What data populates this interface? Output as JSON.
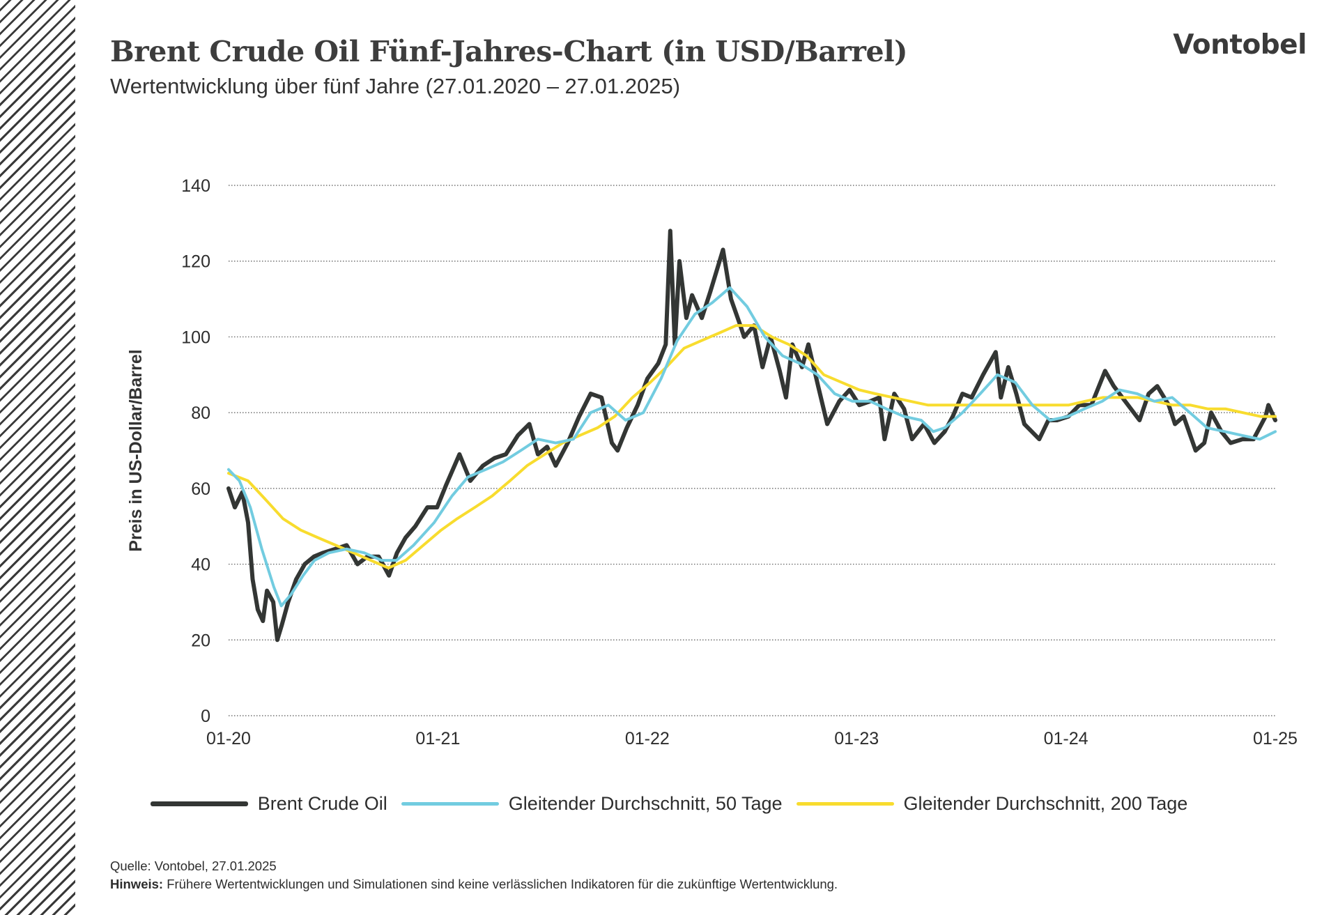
{
  "header": {
    "title": "Brent Crude Oil Fünf-Jahres-Chart (in USD/Barrel)",
    "subtitle": "Wertentwicklung über fünf Jahre (27.01.2020 – 27.01.2025)",
    "logo": "Vontobel"
  },
  "footer": {
    "source_label": "Quelle:",
    "source_text": "Vontobel,  27.01.2025",
    "note_label": "Hinweis:",
    "note_text": "Frühere Wertentwicklungen und Simulationen sind keine verlässlichen Indikatoren für die zukünftige Wertentwicklung."
  },
  "colors": {
    "brent": "#333634",
    "ma50": "#72cce0",
    "ma200": "#f8dc2e",
    "grid": "#555555",
    "hatch": "#3a3a3a"
  },
  "chart_data": {
    "type": "line",
    "title": "Brent Crude Oil Fünf-Jahres-Chart (in USD/Barrel)",
    "ylabel": "Preis in US-Dollar/Barrel",
    "xlabel": "",
    "ylim": [
      0,
      140
    ],
    "yticks": [
      0,
      20,
      40,
      60,
      80,
      100,
      120,
      140
    ],
    "xticks": [
      "01-20",
      "01-21",
      "01-22",
      "01-23",
      "01-24",
      "01-25"
    ],
    "xrange": [
      "2020-01-27",
      "2025-01-27"
    ],
    "grid": "horizontal dotted",
    "legend_position": "bottom",
    "series": [
      {
        "name": "Brent Crude Oil",
        "color": "#333634",
        "points": [
          [
            "2020-01-27",
            60
          ],
          [
            "2020-02-07",
            55
          ],
          [
            "2020-02-20",
            59
          ],
          [
            "2020-03-01",
            51
          ],
          [
            "2020-03-09",
            36
          ],
          [
            "2020-03-18",
            28
          ],
          [
            "2020-03-27",
            25
          ],
          [
            "2020-04-03",
            33
          ],
          [
            "2020-04-14",
            30
          ],
          [
            "2020-04-21",
            20
          ],
          [
            "2020-04-29",
            24
          ],
          [
            "2020-05-10",
            30
          ],
          [
            "2020-05-24",
            36
          ],
          [
            "2020-06-08",
            40
          ],
          [
            "2020-06-24",
            42
          ],
          [
            "2020-07-10",
            43
          ],
          [
            "2020-07-31",
            44
          ],
          [
            "2020-08-20",
            45
          ],
          [
            "2020-09-08",
            40
          ],
          [
            "2020-09-25",
            42
          ],
          [
            "2020-10-15",
            42
          ],
          [
            "2020-11-02",
            37
          ],
          [
            "2020-11-16",
            43
          ],
          [
            "2020-12-01",
            47
          ],
          [
            "2020-12-18",
            50
          ],
          [
            "2021-01-08",
            55
          ],
          [
            "2021-01-25",
            55
          ],
          [
            "2021-02-10",
            61
          ],
          [
            "2021-03-05",
            69
          ],
          [
            "2021-03-24",
            62
          ],
          [
            "2021-04-15",
            66
          ],
          [
            "2021-05-05",
            68
          ],
          [
            "2021-05-25",
            69
          ],
          [
            "2021-06-15",
            74
          ],
          [
            "2021-07-05",
            77
          ],
          [
            "2021-07-20",
            69
          ],
          [
            "2021-08-05",
            71
          ],
          [
            "2021-08-20",
            66
          ],
          [
            "2021-09-10",
            72
          ],
          [
            "2021-09-30",
            79
          ],
          [
            "2021-10-20",
            85
          ],
          [
            "2021-11-08",
            84
          ],
          [
            "2021-11-26",
            72
          ],
          [
            "2021-12-06",
            70
          ],
          [
            "2021-12-22",
            76
          ],
          [
            "2022-01-10",
            82
          ],
          [
            "2022-01-27",
            89
          ],
          [
            "2022-02-15",
            93
          ],
          [
            "2022-02-28",
            98
          ],
          [
            "2022-03-08",
            128
          ],
          [
            "2022-03-16",
            98
          ],
          [
            "2022-03-24",
            120
          ],
          [
            "2022-04-05",
            105
          ],
          [
            "2022-04-15",
            111
          ],
          [
            "2022-05-02",
            105
          ],
          [
            "2022-05-17",
            112
          ],
          [
            "2022-06-08",
            123
          ],
          [
            "2022-06-22",
            110
          ],
          [
            "2022-07-06",
            104
          ],
          [
            "2022-07-15",
            100
          ],
          [
            "2022-08-01",
            103
          ],
          [
            "2022-08-16",
            92
          ],
          [
            "2022-08-30",
            100
          ],
          [
            "2022-09-15",
            91
          ],
          [
            "2022-09-26",
            84
          ],
          [
            "2022-10-07",
            98
          ],
          [
            "2022-10-24",
            92
          ],
          [
            "2022-11-04",
            98
          ],
          [
            "2022-11-21",
            87
          ],
          [
            "2022-12-07",
            77
          ],
          [
            "2022-12-28",
            83
          ],
          [
            "2023-01-15",
            86
          ],
          [
            "2023-02-01",
            82
          ],
          [
            "2023-02-20",
            83
          ],
          [
            "2023-03-08",
            84
          ],
          [
            "2023-03-17",
            73
          ],
          [
            "2023-04-03",
            85
          ],
          [
            "2023-04-20",
            81
          ],
          [
            "2023-05-04",
            73
          ],
          [
            "2023-05-25",
            77
          ],
          [
            "2023-06-12",
            72
          ],
          [
            "2023-06-30",
            75
          ],
          [
            "2023-07-14",
            79
          ],
          [
            "2023-07-31",
            85
          ],
          [
            "2023-08-16",
            84
          ],
          [
            "2023-09-05",
            90
          ],
          [
            "2023-09-27",
            96
          ],
          [
            "2023-10-06",
            84
          ],
          [
            "2023-10-19",
            92
          ],
          [
            "2023-11-02",
            85
          ],
          [
            "2023-11-16",
            77
          ],
          [
            "2023-12-12",
            73
          ],
          [
            "2023-12-28",
            78
          ],
          [
            "2024-01-12",
            78
          ],
          [
            "2024-02-01",
            79
          ],
          [
            "2024-02-20",
            82
          ],
          [
            "2024-03-12",
            82
          ],
          [
            "2024-04-05",
            91
          ],
          [
            "2024-04-20",
            87
          ],
          [
            "2024-05-10",
            83
          ],
          [
            "2024-06-04",
            78
          ],
          [
            "2024-06-20",
            85
          ],
          [
            "2024-07-05",
            87
          ],
          [
            "2024-07-25",
            82
          ],
          [
            "2024-08-05",
            77
          ],
          [
            "2024-08-20",
            79
          ],
          [
            "2024-09-10",
            70
          ],
          [
            "2024-09-25",
            72
          ],
          [
            "2024-10-07",
            80
          ],
          [
            "2024-10-25",
            75
          ],
          [
            "2024-11-10",
            72
          ],
          [
            "2024-12-01",
            73
          ],
          [
            "2024-12-20",
            73
          ],
          [
            "2025-01-10",
            79
          ],
          [
            "2025-01-15",
            82
          ],
          [
            "2025-01-27",
            78
          ]
        ]
      },
      {
        "name": "Gleitender Durchschnitt, 50 Tage",
        "color": "#72cce0",
        "points": [
          [
            "2020-01-27",
            65
          ],
          [
            "2020-02-15",
            62
          ],
          [
            "2020-03-05",
            55
          ],
          [
            "2020-03-25",
            44
          ],
          [
            "2020-04-15",
            34
          ],
          [
            "2020-04-28",
            29
          ],
          [
            "2020-05-15",
            32
          ],
          [
            "2020-06-05",
            37
          ],
          [
            "2020-06-25",
            41
          ],
          [
            "2020-07-20",
            43
          ],
          [
            "2020-08-20",
            44
          ],
          [
            "2020-09-20",
            43
          ],
          [
            "2020-10-20",
            41
          ],
          [
            "2020-11-15",
            41
          ],
          [
            "2020-12-15",
            45
          ],
          [
            "2021-01-20",
            51
          ],
          [
            "2021-02-20",
            58
          ],
          [
            "2021-03-20",
            63
          ],
          [
            "2021-04-20",
            65
          ],
          [
            "2021-05-20",
            67
          ],
          [
            "2021-06-20",
            70
          ],
          [
            "2021-07-20",
            73
          ],
          [
            "2021-08-20",
            72
          ],
          [
            "2021-09-20",
            73
          ],
          [
            "2021-10-20",
            80
          ],
          [
            "2021-11-20",
            82
          ],
          [
            "2021-12-20",
            78
          ],
          [
            "2022-01-20",
            80
          ],
          [
            "2022-02-20",
            89
          ],
          [
            "2022-03-20",
            99
          ],
          [
            "2022-04-20",
            106
          ],
          [
            "2022-05-20",
            109
          ],
          [
            "2022-06-20",
            113
          ],
          [
            "2022-07-20",
            108
          ],
          [
            "2022-08-20",
            100
          ],
          [
            "2022-09-20",
            95
          ],
          [
            "2022-10-20",
            93
          ],
          [
            "2022-11-20",
            90
          ],
          [
            "2022-12-20",
            85
          ],
          [
            "2023-01-20",
            83
          ],
          [
            "2023-02-20",
            83
          ],
          [
            "2023-03-20",
            81
          ],
          [
            "2023-04-20",
            79
          ],
          [
            "2023-05-20",
            78
          ],
          [
            "2023-06-10",
            75
          ],
          [
            "2023-06-30",
            76
          ],
          [
            "2023-07-31",
            80
          ],
          [
            "2023-08-31",
            85
          ],
          [
            "2023-09-30",
            90
          ],
          [
            "2023-10-31",
            88
          ],
          [
            "2023-11-30",
            82
          ],
          [
            "2023-12-31",
            78
          ],
          [
            "2024-01-31",
            79
          ],
          [
            "2024-02-29",
            81
          ],
          [
            "2024-03-31",
            83
          ],
          [
            "2024-04-30",
            86
          ],
          [
            "2024-05-31",
            85
          ],
          [
            "2024-06-30",
            83
          ],
          [
            "2024-07-31",
            84
          ],
          [
            "2024-08-31",
            80
          ],
          [
            "2024-09-30",
            76
          ],
          [
            "2024-10-31",
            75
          ],
          [
            "2024-11-30",
            74
          ],
          [
            "2024-12-31",
            73
          ],
          [
            "2025-01-27",
            75
          ]
        ]
      },
      {
        "name": "Gleitender Durchschnitt, 200 Tage",
        "color": "#f8dc2e",
        "points": [
          [
            "2020-01-27",
            64
          ],
          [
            "2020-03-01",
            62
          ],
          [
            "2020-04-01",
            57
          ],
          [
            "2020-05-01",
            52
          ],
          [
            "2020-06-01",
            49
          ],
          [
            "2020-07-01",
            47
          ],
          [
            "2020-08-01",
            45
          ],
          [
            "2020-09-01",
            43
          ],
          [
            "2020-10-01",
            41
          ],
          [
            "2020-11-01",
            39
          ],
          [
            "2020-12-01",
            41
          ],
          [
            "2021-01-01",
            45
          ],
          [
            "2021-02-01",
            49
          ],
          [
            "2021-03-01",
            52
          ],
          [
            "2021-04-01",
            55
          ],
          [
            "2021-05-01",
            58
          ],
          [
            "2021-06-01",
            62
          ],
          [
            "2021-07-01",
            66
          ],
          [
            "2021-08-01",
            69
          ],
          [
            "2021-09-01",
            72
          ],
          [
            "2021-10-01",
            74
          ],
          [
            "2021-11-01",
            76
          ],
          [
            "2021-12-01",
            79
          ],
          [
            "2022-01-01",
            84
          ],
          [
            "2022-02-01",
            88
          ],
          [
            "2022-03-01",
            92
          ],
          [
            "2022-04-01",
            97
          ],
          [
            "2022-05-01",
            99
          ],
          [
            "2022-06-01",
            101
          ],
          [
            "2022-07-01",
            103
          ],
          [
            "2022-08-01",
            103
          ],
          [
            "2022-09-01",
            100
          ],
          [
            "2022-10-01",
            98
          ],
          [
            "2022-11-01",
            95
          ],
          [
            "2022-12-01",
            90
          ],
          [
            "2023-01-01",
            88
          ],
          [
            "2023-02-01",
            86
          ],
          [
            "2023-03-01",
            85
          ],
          [
            "2023-04-01",
            84
          ],
          [
            "2023-05-01",
            83
          ],
          [
            "2023-06-01",
            82
          ],
          [
            "2023-07-01",
            82
          ],
          [
            "2023-08-01",
            82
          ],
          [
            "2023-09-01",
            82
          ],
          [
            "2023-10-01",
            82
          ],
          [
            "2023-11-01",
            82
          ],
          [
            "2023-12-01",
            82
          ],
          [
            "2024-01-01",
            82
          ],
          [
            "2024-02-01",
            82
          ],
          [
            "2024-03-01",
            83
          ],
          [
            "2024-04-01",
            84
          ],
          [
            "2024-05-01",
            84
          ],
          [
            "2024-06-01",
            84
          ],
          [
            "2024-07-01",
            83
          ],
          [
            "2024-08-01",
            82
          ],
          [
            "2024-09-01",
            82
          ],
          [
            "2024-10-01",
            81
          ],
          [
            "2024-11-01",
            81
          ],
          [
            "2024-12-01",
            80
          ],
          [
            "2025-01-01",
            79
          ],
          [
            "2025-01-27",
            79
          ]
        ]
      }
    ]
  }
}
